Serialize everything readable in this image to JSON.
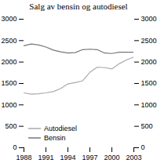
{
  "chart_data": {
    "type": "line",
    "title": "Salg av bensin og autodiesel",
    "x": [
      1988,
      1989,
      1990,
      1991,
      1992,
      1993,
      1994,
      1995,
      1996,
      1997,
      1998,
      1999,
      2000,
      2001,
      2002,
      2003
    ],
    "series": [
      {
        "name": "Autodiesel",
        "color": "#aaaaaa",
        "values": [
          1280,
          1250,
          1260,
          1280,
          1310,
          1380,
          1490,
          1520,
          1560,
          1760,
          1880,
          1870,
          1840,
          1960,
          2050,
          2120
        ]
      },
      {
        "name": "Bensin",
        "color": "#777777",
        "values": [
          2380,
          2420,
          2400,
          2350,
          2280,
          2240,
          2210,
          2220,
          2290,
          2300,
          2290,
          2210,
          2200,
          2230,
          2230,
          2230
        ]
      }
    ],
    "xlim": [
      1988,
      2003
    ],
    "xticks": [
      1988,
      1991,
      1994,
      1997,
      2000,
      2003
    ],
    "ylim": [
      0,
      3000
    ],
    "yticks": [
      0,
      500,
      1000,
      1500,
      2000,
      2500,
      3000
    ],
    "y2lim": [
      0,
      3000
    ],
    "y2ticks": [
      0,
      500,
      1000,
      1500,
      2000,
      2500,
      3000
    ],
    "grid": false,
    "legend": "lower left"
  }
}
